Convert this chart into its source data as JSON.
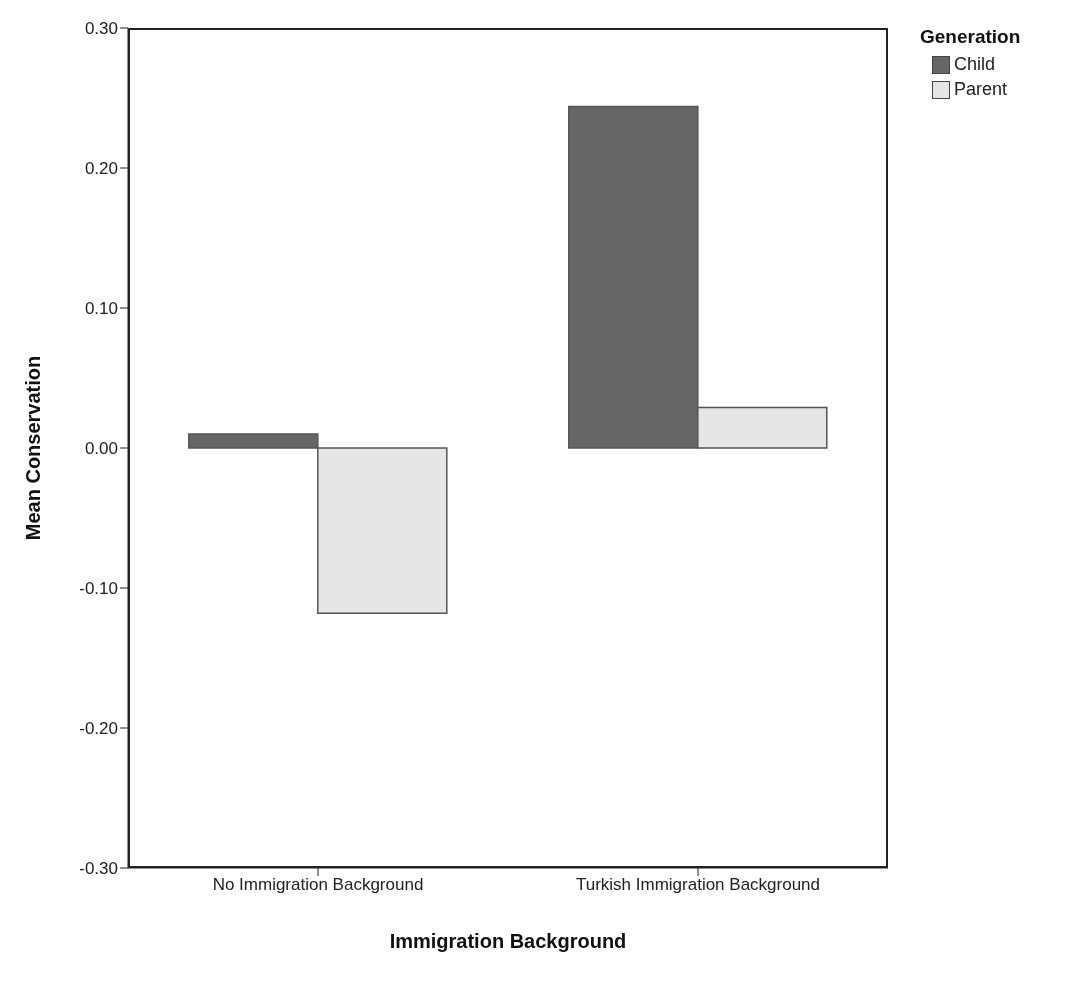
{
  "chart_data": {
    "type": "bar",
    "xlabel": "Immigration Background",
    "ylabel": "Mean Conservation",
    "legend_title": "Generation",
    "categories": [
      "No Immigration Background",
      "Turkish Immigration Background"
    ],
    "series": [
      {
        "name": "Child",
        "color": "#666666",
        "values": [
          0.01,
          0.244
        ]
      },
      {
        "name": "Parent",
        "color": "#e6e6e6",
        "values": [
          -0.118,
          0.029
        ]
      }
    ],
    "ylim": [
      -0.3,
      0.3
    ],
    "yticks": [
      {
        "value": -0.3,
        "label": "-0.30"
      },
      {
        "value": -0.2,
        "label": "-0.20"
      },
      {
        "value": -0.1,
        "label": "-0.10"
      },
      {
        "value": 0,
        "label": "0.00"
      },
      {
        "value": 0.1,
        "label": "0.10"
      },
      {
        "value": 0.2,
        "label": "0.20"
      },
      {
        "value": 0.3,
        "label": "0.30"
      }
    ],
    "grid": false,
    "legend": "top right"
  }
}
